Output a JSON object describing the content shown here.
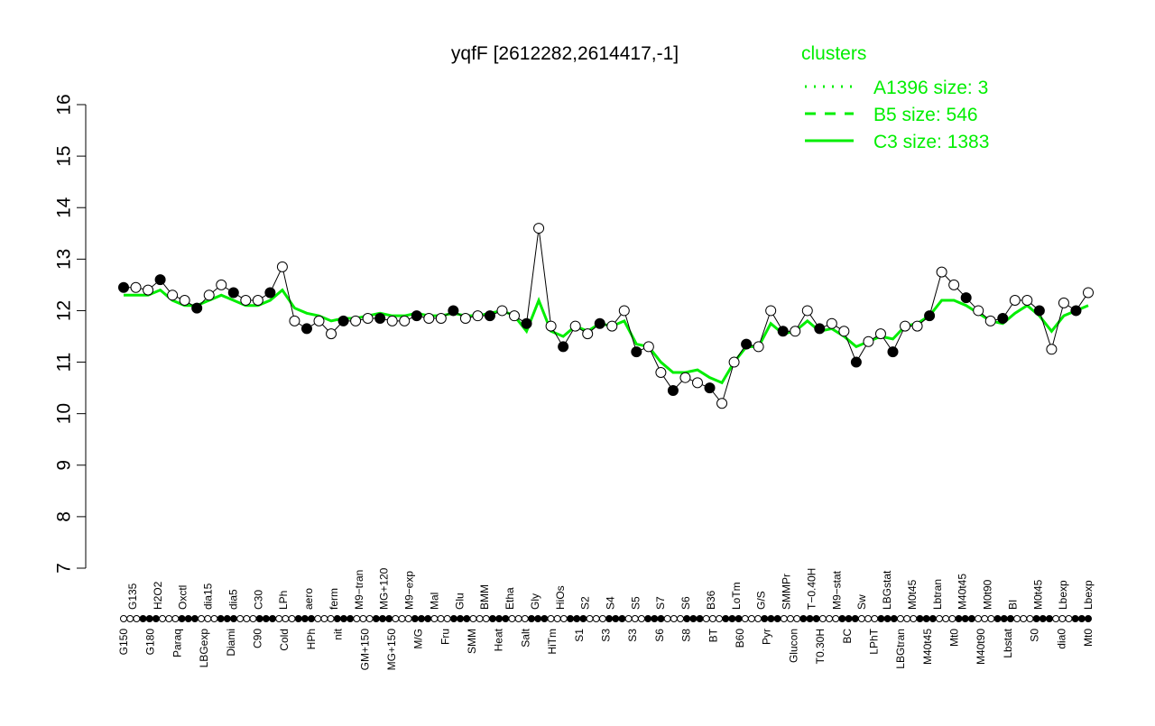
{
  "chart_data": {
    "type": "line",
    "title": "yqfF [2612282,2614417,-1]",
    "xlabel": "",
    "ylabel": "",
    "ylim": [
      7,
      16
    ],
    "yticks": [
      7,
      8,
      9,
      10,
      11,
      12,
      13,
      14,
      15,
      16
    ],
    "grid": false,
    "legend": {
      "title": "clusters",
      "placement": "top-right",
      "color": "#00ee00",
      "entries": [
        {
          "label": "A1396 size: 3",
          "style": "dotted"
        },
        {
          "label": "B5 size: 546",
          "style": "dashed"
        },
        {
          "label": "C3 size: 1383",
          "style": "solid"
        }
      ]
    },
    "series": [
      {
        "color": "#000000",
        "marker": "circle",
        "values": [
          12.45,
          12.45,
          12.4,
          12.6,
          12.3,
          12.2,
          12.05,
          12.3,
          12.5,
          12.35,
          12.2,
          12.2,
          12.35,
          12.85,
          11.8,
          11.65,
          11.8,
          11.55,
          11.8,
          11.8,
          11.85,
          11.85,
          11.8,
          11.8,
          11.9,
          11.85,
          11.85,
          12.0,
          11.85,
          11.9,
          11.9,
          12.0,
          11.9,
          11.75,
          13.6,
          11.7,
          11.3,
          11.7,
          11.55,
          11.75,
          11.7,
          12.0,
          11.2,
          11.3,
          10.8,
          10.45,
          10.7,
          10.6,
          10.5,
          10.2,
          11.0,
          11.35,
          11.3,
          12.0,
          11.6,
          11.6,
          12.0,
          11.65,
          11.75,
          11.6,
          11.0,
          11.4,
          11.55,
          11.2,
          11.7,
          11.7,
          11.9,
          12.75,
          12.5,
          12.25,
          12.0,
          11.8,
          11.85,
          12.2,
          12.2,
          12.0,
          11.25,
          12.15,
          12.0,
          12.35
        ]
      },
      {
        "color": "#00ee00",
        "style": "solid",
        "values": [
          12.3,
          12.3,
          12.3,
          12.4,
          12.2,
          12.1,
          12.1,
          12.2,
          12.3,
          12.2,
          12.1,
          12.1,
          12.2,
          12.4,
          12.05,
          11.95,
          11.9,
          11.8,
          11.85,
          11.85,
          11.9,
          11.95,
          11.9,
          11.9,
          11.95,
          11.9,
          11.9,
          11.95,
          11.9,
          11.9,
          11.95,
          12.0,
          11.9,
          11.6,
          12.2,
          11.6,
          11.5,
          11.7,
          11.6,
          11.75,
          11.7,
          11.8,
          11.35,
          11.3,
          11.0,
          10.8,
          10.8,
          10.85,
          10.7,
          10.6,
          11.0,
          11.3,
          11.3,
          11.75,
          11.55,
          11.6,
          11.8,
          11.6,
          11.65,
          11.5,
          11.3,
          11.4,
          11.5,
          11.45,
          11.7,
          11.75,
          11.9,
          12.2,
          12.2,
          12.1,
          11.95,
          11.8,
          11.75,
          11.95,
          12.1,
          11.9,
          11.6,
          11.9,
          12.0,
          12.1
        ]
      }
    ],
    "tick_labels_bottom": [
      "G150",
      "G180",
      "Paraq",
      "LBGexp",
      "Diami",
      "C90",
      "Cold",
      "HPh",
      "nit",
      "GM+150",
      "MG+150",
      "M/G",
      "Fru",
      "SMM",
      "Heat",
      "Salt",
      "HiTm",
      "S1",
      "S3",
      "S3",
      "S6",
      "S8",
      "BT",
      "B60",
      "Pyr",
      "Glucon",
      "T0.30H",
      "BC",
      "LPhT",
      "LBGtran",
      "M40t45",
      "Mt0",
      "M40t90",
      "Lbstat",
      "S0",
      "dia0",
      "Mt0"
    ],
    "tick_labels_top": [
      "G135",
      "H2O2",
      "Oxctl",
      "dia15",
      "dia5",
      "C30",
      "LPh",
      "aero",
      "ferm",
      "M9−tran",
      "MG+120",
      "M9−exp",
      "Mal",
      "Glu",
      "BMM",
      "Etha",
      "Gly",
      "HiOs",
      "S2",
      "S4",
      "S5",
      "S7",
      "S6",
      "B36",
      "LoTm",
      "G/S",
      "SMMPr",
      "T−0.40H",
      "M9−stat",
      "Sw",
      "LBGstat",
      "M0t45",
      "Lbtran",
      "M40t45",
      "M0t90",
      "BI",
      "M0t45",
      "Lbexp",
      "Lbexp"
    ]
  }
}
